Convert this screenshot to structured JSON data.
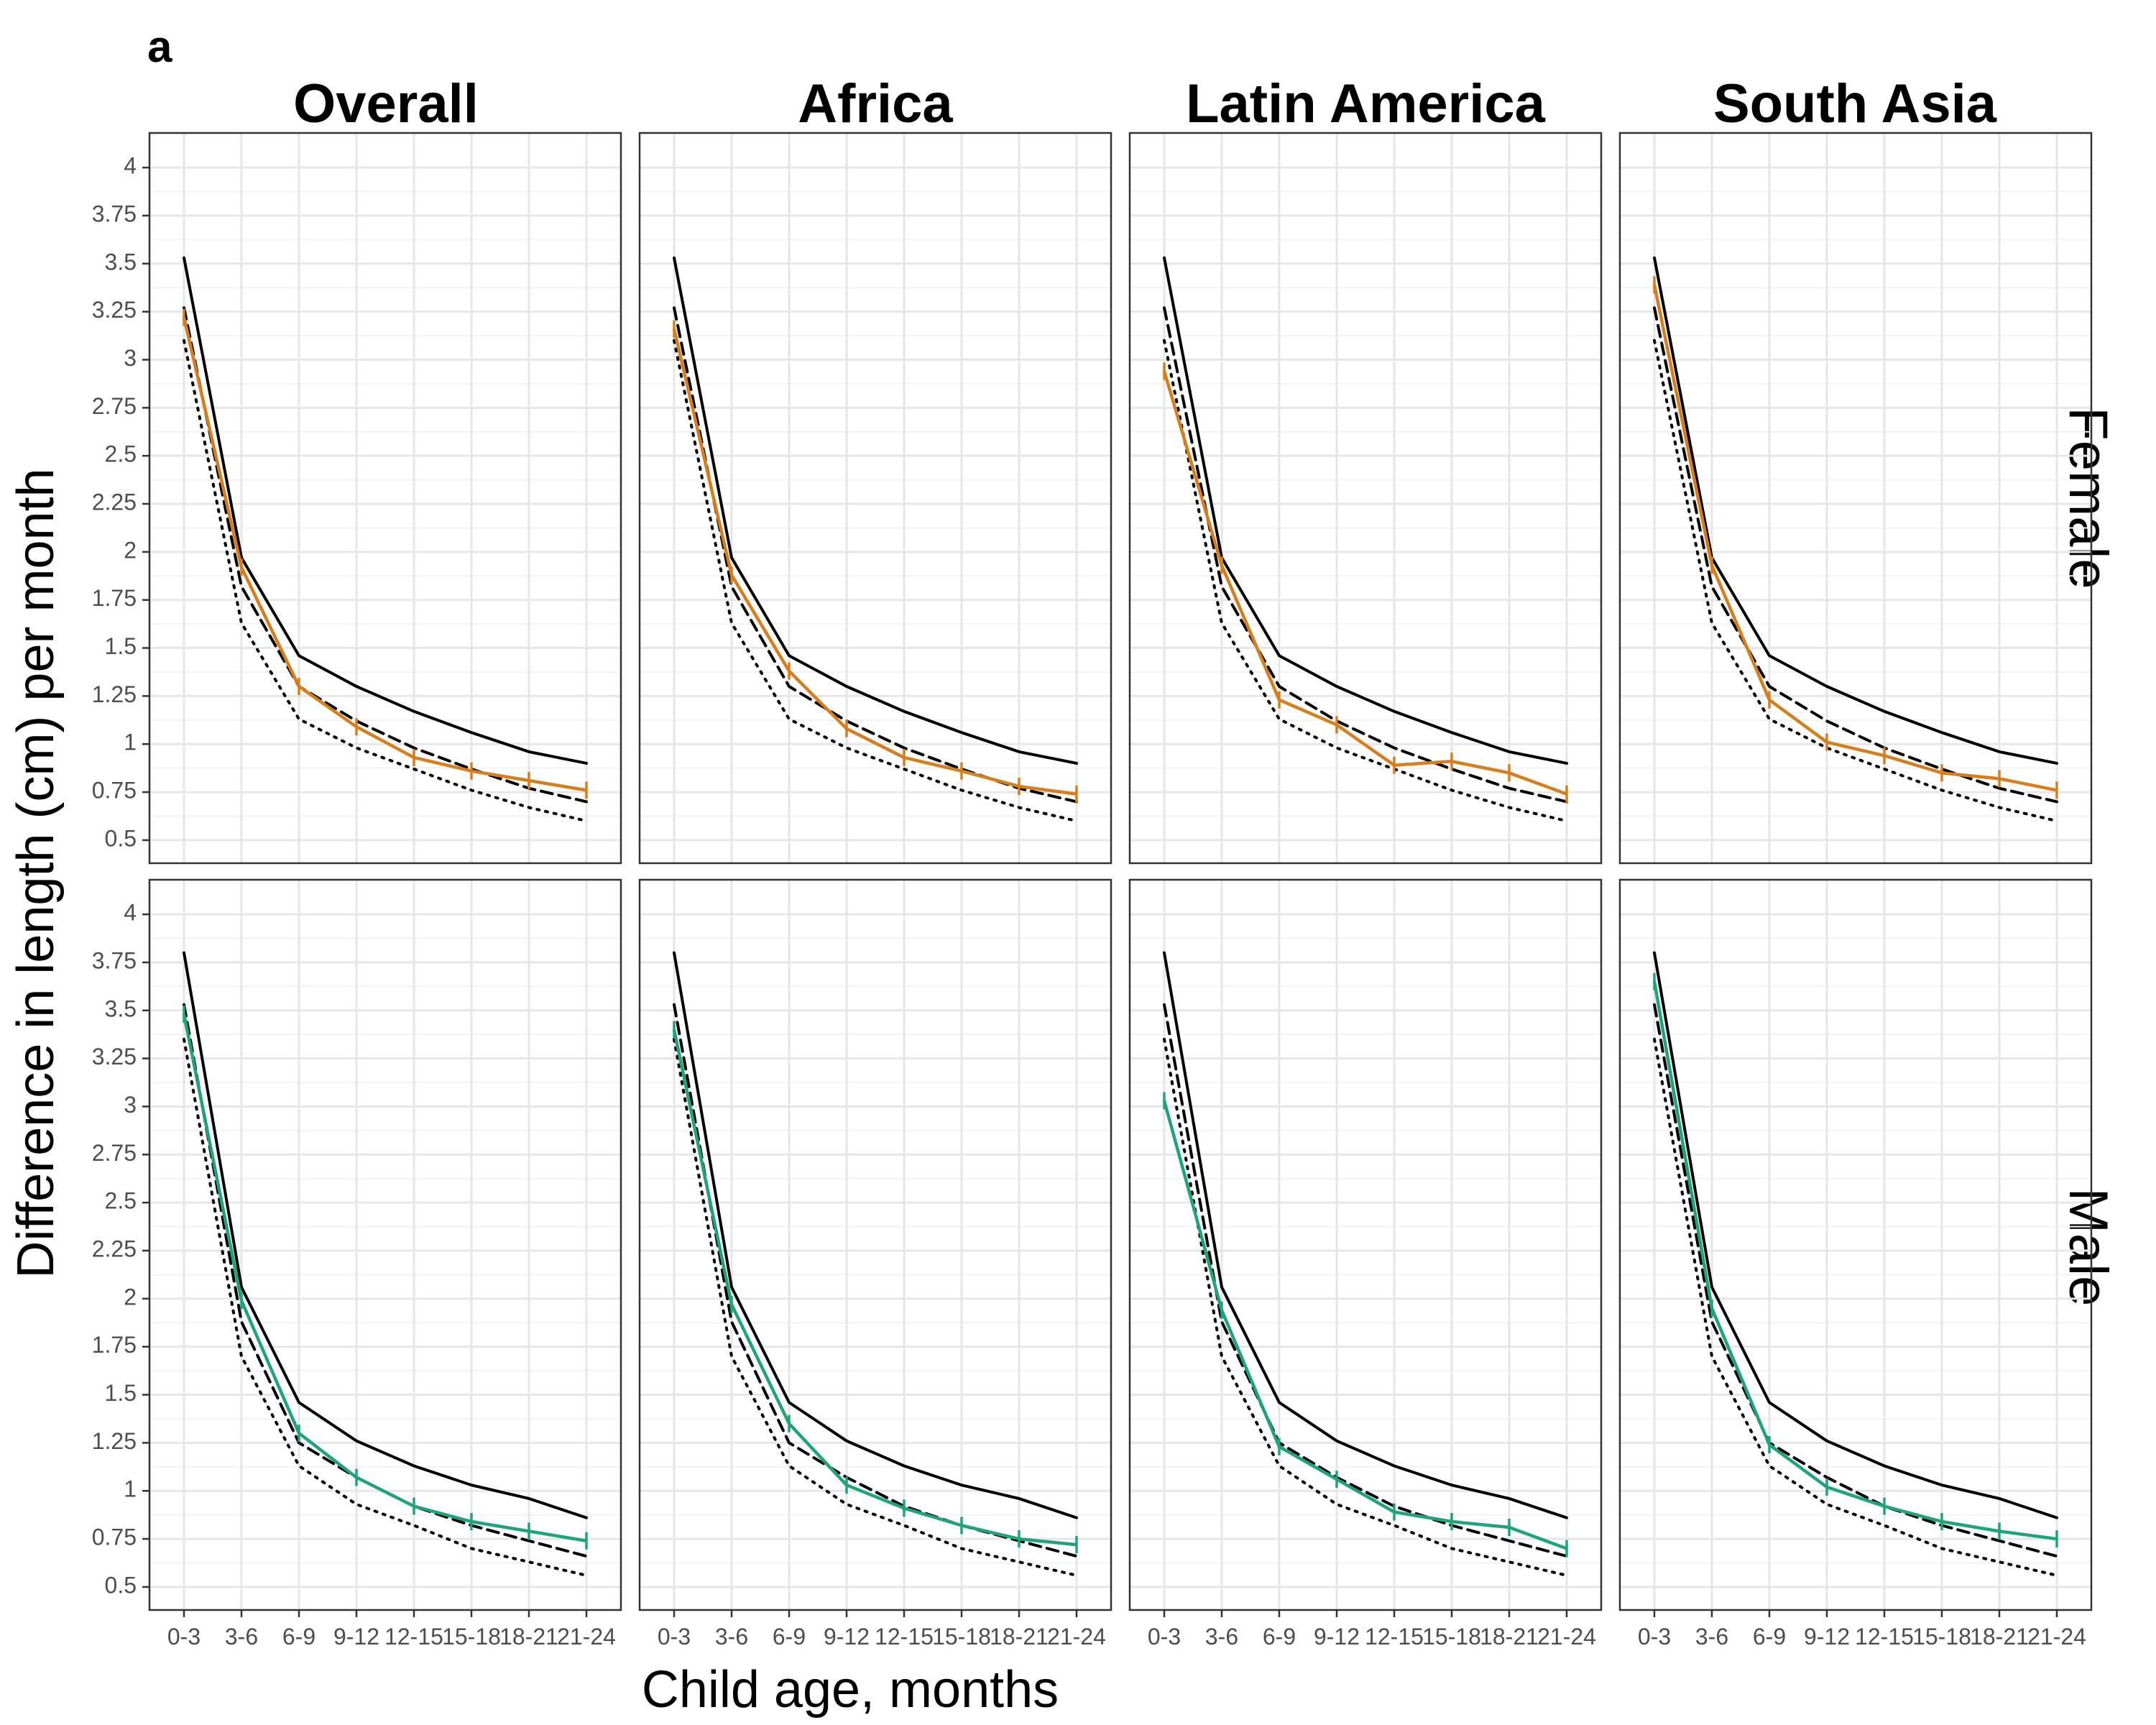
{
  "panel_label": "a",
  "ylabel": "Difference in length (cm) per month",
  "xlabel": "Child age, months",
  "regions": [
    "Overall",
    "Africa",
    "Latin America",
    "South Asia"
  ],
  "sexes": [
    "Female",
    "Male"
  ],
  "chart_data": {
    "type": "line",
    "facet_columns": [
      "Overall",
      "Africa",
      "Latin America",
      "South Asia"
    ],
    "facet_rows": [
      "Female",
      "Male"
    ],
    "categories": [
      "0-3",
      "3-6",
      "6-9",
      "9-12",
      "12-15",
      "15-18",
      "18-21",
      "21-24"
    ],
    "yticks": [
      0.5,
      0.75,
      1,
      1.25,
      1.5,
      1.75,
      2,
      2.25,
      2.5,
      2.75,
      3,
      3.25,
      3.5,
      3.75,
      4
    ],
    "ytick_labels": [
      "0.5",
      "0.75",
      "1",
      "1.25",
      "1.5",
      "1.75",
      "2",
      "2.25",
      "2.5",
      "2.75",
      "3",
      "3.25",
      "3.5",
      "3.75",
      "4"
    ],
    "ylim": [
      0.38,
      4.18
    ],
    "grid": true,
    "colors": {
      "female": "#D67E1E",
      "male": "#1FA37A",
      "reference": "#000000"
    },
    "reference": {
      "Female": {
        "solid": [
          3.53,
          1.97,
          1.46,
          1.3,
          1.17,
          1.06,
          0.96,
          0.9
        ],
        "dashed": [
          3.27,
          1.82,
          1.3,
          1.12,
          0.98,
          0.87,
          0.77,
          0.7
        ],
        "dotted": [
          3.1,
          1.63,
          1.13,
          0.98,
          0.87,
          0.76,
          0.67,
          0.6
        ]
      },
      "Male": {
        "solid": [
          3.8,
          2.06,
          1.46,
          1.26,
          1.13,
          1.03,
          0.96,
          0.86
        ],
        "dashed": [
          3.53,
          1.88,
          1.25,
          1.07,
          0.92,
          0.82,
          0.74,
          0.66
        ],
        "dotted": [
          3.35,
          1.7,
          1.13,
          0.93,
          0.82,
          0.7,
          0.63,
          0.56
        ]
      }
    },
    "observed": {
      "Female": {
        "Overall": [
          3.22,
          1.92,
          1.3,
          1.09,
          0.93,
          0.86,
          0.81,
          0.76
        ],
        "Africa": [
          3.16,
          1.88,
          1.38,
          1.08,
          0.93,
          0.86,
          0.78,
          0.74
        ],
        "Latin America": [
          2.94,
          1.93,
          1.23,
          1.1,
          0.89,
          0.91,
          0.85,
          0.74
        ],
        "South Asia": [
          3.39,
          1.93,
          1.23,
          1.01,
          0.94,
          0.85,
          0.82,
          0.76
        ]
      },
      "Male": {
        "Overall": [
          3.48,
          1.99,
          1.3,
          1.07,
          0.92,
          0.84,
          0.79,
          0.74
        ],
        "Africa": [
          3.4,
          1.97,
          1.35,
          1.03,
          0.91,
          0.82,
          0.75,
          0.72
        ],
        "Latin America": [
          3.03,
          1.94,
          1.23,
          1.06,
          0.89,
          0.84,
          0.81,
          0.7
        ],
        "South Asia": [
          3.65,
          1.95,
          1.24,
          1.02,
          0.92,
          0.84,
          0.79,
          0.75
        ]
      }
    }
  }
}
